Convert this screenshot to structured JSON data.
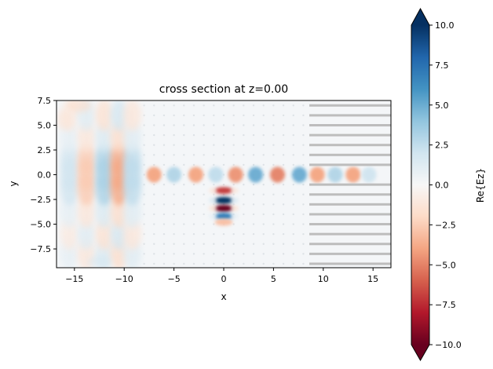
{
  "chart_data": {
    "type": "heatmap",
    "title": "cross section at z=0.00",
    "xlabel": "x",
    "ylabel": "y",
    "xlim": [
      -16.8,
      16.8
    ],
    "ylim": [
      -9.4,
      7.5
    ],
    "xticks": [
      -15,
      -10,
      -5,
      0,
      5,
      10,
      15
    ],
    "xtick_labels": [
      "−15",
      "−10",
      "−5",
      "0",
      "5",
      "10",
      "15"
    ],
    "yticks": [
      7.5,
      5.0,
      2.5,
      0.0,
      -2.5,
      -5.0,
      -7.5
    ],
    "ytick_labels": [
      "7.5",
      "5.0",
      "2.5",
      "0.0",
      "−2.5",
      "−5.0",
      "−7.5"
    ],
    "colorbar": {
      "label": "Re{Ez}",
      "range": [
        -10.0,
        10.0
      ],
      "ticks": [
        10.0,
        7.5,
        5.0,
        2.5,
        0.0,
        -2.5,
        -5.0,
        -7.5,
        -10.0
      ],
      "tick_labels": [
        "10.0",
        "7.5",
        "5.0",
        "2.5",
        "0.0",
        "−2.5",
        "−5.0",
        "−7.5",
        "−10.0"
      ],
      "colormap": "RdBu",
      "extend": "both"
    },
    "colors": {
      "positive": "#053061",
      "zero": "#f7f7f7",
      "negative": "#67001f",
      "structure": "#bdbdbd"
    }
  }
}
